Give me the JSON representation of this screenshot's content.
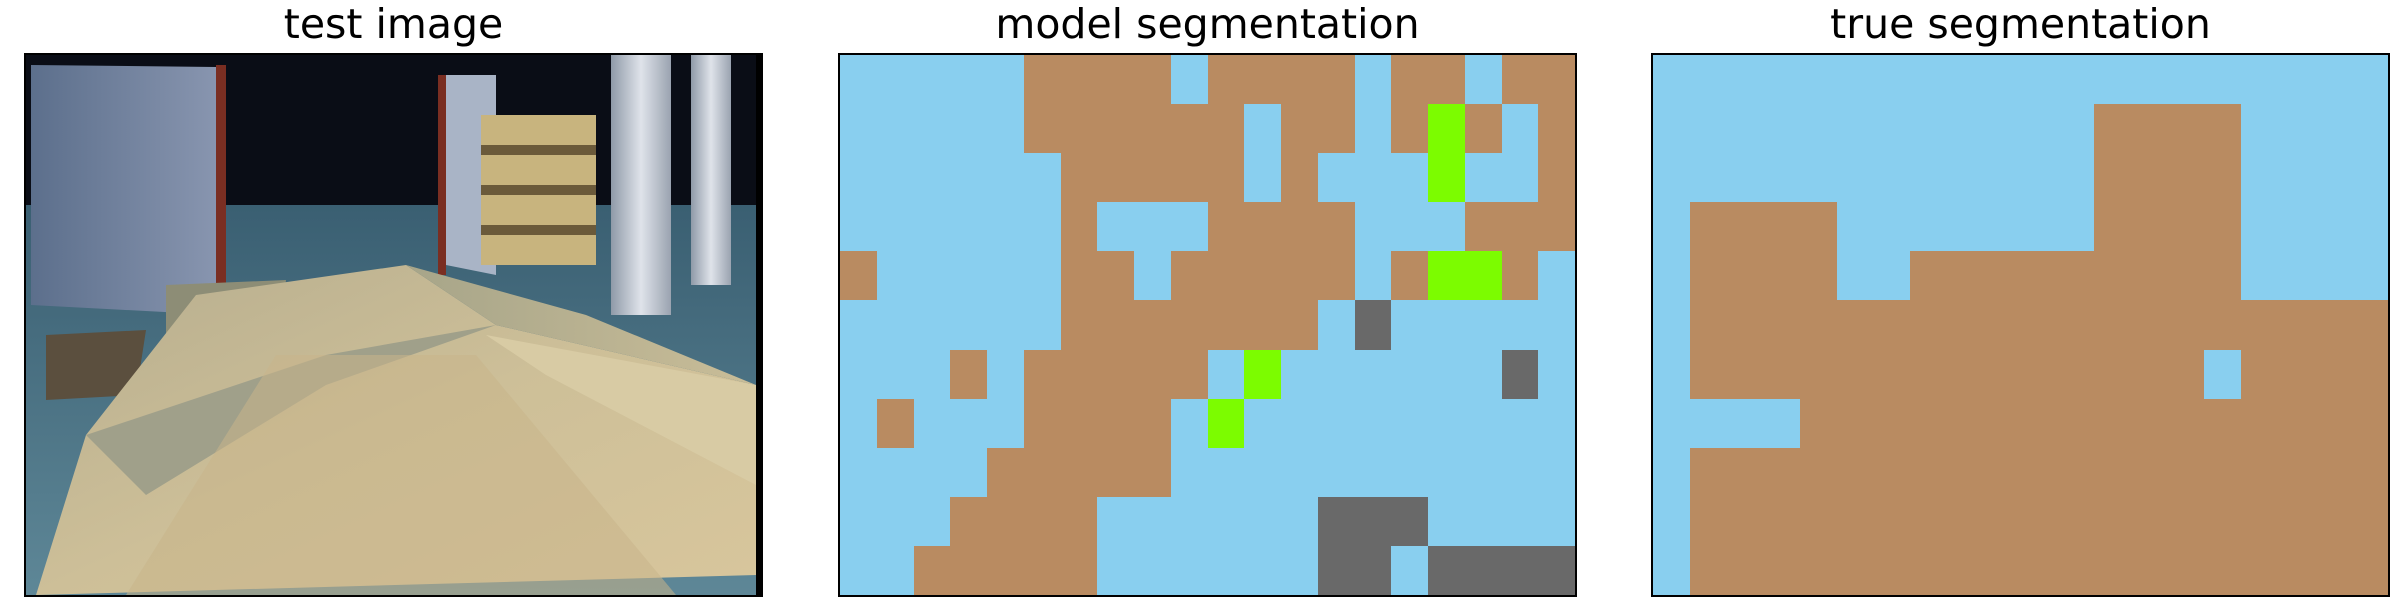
{
  "panels": [
    {
      "title": "test image"
    },
    {
      "title": "model segmentation"
    },
    {
      "title": "true segmentation"
    }
  ],
  "palette": {
    "S": "#89cfef",
    "B": "#b98b61",
    "G": "#7cfc00",
    "D": "#696969"
  },
  "model_segmentation": [
    "SSSSSBBBBSBBBBSBBSBB",
    "SSSSSBBBBBBSBBSBGBSB",
    "SSSSSSBBBBBSBSSSGSSB",
    "SSSSSSBSSSBBBBSSSBBB",
    "BSSSSSBBSBBBBBSBGGBS",
    "SSSSSSBBBBBBBSDSSSSS",
    "SSSBSBBBBBSGSSSSSSDS",
    "SBSSSBBBBSGSSSSSSSSS",
    "SSSSBBBBBSSSSSSSSSSS",
    "SSSBBBBSSSSSSDDDSSSS",
    "SSBBBBBSSSSSSDDSDDDD"
  ],
  "true_segmentation": [
    "SSSSSSSSSSSSSSSSSSSS",
    "SSSSSSSSSSSSBBBBSSSS",
    "SSSSSSSSSSSSBBBBSSSS",
    "SBBBBSSSSSSSBBBBSSSS",
    "SBBBBSSBBBBBBBBBSSSS",
    "SBBBBBBBBBBBBBBBBBBB",
    "SBBBBBBBBBBBBBBSBBBB",
    "SSSSBBBBBBBBBBBBBBBB",
    "SBBBBBBBBBBBBBBBBBBB",
    "SBBBBBBBBBBBBBBBBBBB",
    "SBBBBBBBBBBBBBBBBBBB"
  ]
}
